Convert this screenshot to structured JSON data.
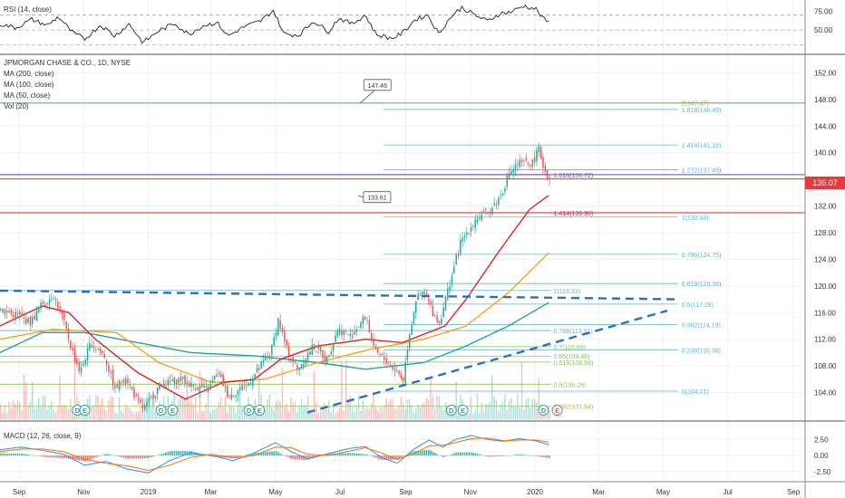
{
  "rsi_panel": {
    "label": "RSI (14, close)",
    "axis_ticks": [
      "75.00",
      "50.00"
    ],
    "tick_values": [
      75,
      50
    ],
    "range": [
      20,
      90
    ],
    "bands": [
      70,
      50,
      30
    ]
  },
  "price_panel": {
    "header": "JPMORGAN CHASE & CO., 1D, NYSE",
    "indicators": [
      "MA (200, close)",
      "MA (100, close)",
      "MA (50, close)",
      "Vol (20)"
    ],
    "last_price": "136.07",
    "price_tags": [
      {
        "label": "147.46",
        "price": 147.46,
        "day": 340
      },
      {
        "label": "133.61",
        "price": 133.61,
        "day": 338
      }
    ]
  },
  "macd_panel": {
    "label": "MACD (12, 26, close, 9)",
    "axis_ticks": [
      "2.50",
      "0.00",
      "-2.50"
    ],
    "tick_values": [
      2.5,
      0,
      -2.5
    ],
    "range": [
      -3.5,
      3.8
    ]
  },
  "x_axis": {
    "labels": [
      {
        "text": "Sep",
        "day": 18
      },
      {
        "text": "Nov",
        "day": 79
      },
      {
        "text": "2019",
        "day": 140
      },
      {
        "text": "Mar",
        "day": 199
      },
      {
        "text": "May",
        "day": 260
      },
      {
        "text": "Jul",
        "day": 321
      },
      {
        "text": "Sep",
        "day": 383
      },
      {
        "text": "Nov",
        "day": 444
      },
      {
        "text": "2020",
        "day": 505
      },
      {
        "text": "Mar",
        "day": 565
      },
      {
        "text": "May",
        "day": 626
      },
      {
        "text": "Jul",
        "day": 687
      },
      {
        "text": "Sep",
        "day": 749
      }
    ],
    "range": [
      0,
      760
    ]
  },
  "colors": {
    "up": "#26a69a",
    "down": "#ef5350",
    "ma200": "#1fa39b",
    "ma100": "#f7a21b",
    "ma50": "#d9232a",
    "fib_blue": "#5bb3d6",
    "fib_green": "#8bc34a",
    "trend": "#2d6fbf",
    "rsi": "#222222",
    "macd": "#2196f3",
    "signal": "#ff6d00"
  },
  "chart_data": {
    "type": "candlestick",
    "title": "JPMORGAN CHASE & CO., 1D, NYSE",
    "y_axis_ticks": [
      "152.00",
      "148.00",
      "144.00",
      "140.00",
      "136.00",
      "132.00",
      "128.00",
      "124.00",
      "120.00",
      "116.00",
      "112.00",
      "108.00",
      "104.00"
    ],
    "y_tick_values": [
      152,
      148,
      144,
      140,
      136,
      132,
      128,
      124,
      120,
      116,
      112,
      108,
      104
    ],
    "ylim": [
      100.0,
      154.5
    ],
    "price_path": [
      {
        "day": 0,
        "price": 116.5
      },
      {
        "day": 18,
        "price": 115.5
      },
      {
        "day": 28,
        "price": 114.5
      },
      {
        "day": 40,
        "price": 117.5
      },
      {
        "day": 50,
        "price": 118.5
      },
      {
        "day": 58,
        "price": 115.5
      },
      {
        "day": 66,
        "price": 111.0
      },
      {
        "day": 75,
        "price": 107.0
      },
      {
        "day": 85,
        "price": 111.5
      },
      {
        "day": 98,
        "price": 109.5
      },
      {
        "day": 108,
        "price": 104.5
      },
      {
        "day": 118,
        "price": 106.5
      },
      {
        "day": 128,
        "price": 103.0
      },
      {
        "day": 135,
        "price": 101.5
      },
      {
        "day": 150,
        "price": 105.0
      },
      {
        "day": 170,
        "price": 106.0
      },
      {
        "day": 182,
        "price": 105.0
      },
      {
        "day": 196,
        "price": 104.5
      },
      {
        "day": 205,
        "price": 107.0
      },
      {
        "day": 215,
        "price": 103.5
      },
      {
        "day": 232,
        "price": 105.0
      },
      {
        "day": 255,
        "price": 110.0
      },
      {
        "day": 262,
        "price": 115.0
      },
      {
        "day": 270,
        "price": 110.5
      },
      {
        "day": 280,
        "price": 107.5
      },
      {
        "day": 295,
        "price": 111.0
      },
      {
        "day": 308,
        "price": 109.0
      },
      {
        "day": 318,
        "price": 113.5
      },
      {
        "day": 330,
        "price": 112.5
      },
      {
        "day": 345,
        "price": 115.5
      },
      {
        "day": 352,
        "price": 110.5
      },
      {
        "day": 362,
        "price": 109.0
      },
      {
        "day": 372,
        "price": 107.5
      },
      {
        "day": 380,
        "price": 106.0
      },
      {
        "day": 385,
        "price": 112.0
      },
      {
        "day": 392,
        "price": 118.0
      },
      {
        "day": 400,
        "price": 119.0
      },
      {
        "day": 408,
        "price": 116.0
      },
      {
        "day": 414,
        "price": 114.5
      },
      {
        "day": 424,
        "price": 120.5
      },
      {
        "day": 434,
        "price": 126.5
      },
      {
        "day": 448,
        "price": 130.0
      },
      {
        "day": 460,
        "price": 131.0
      },
      {
        "day": 472,
        "price": 133.5
      },
      {
        "day": 480,
        "price": 137.0
      },
      {
        "day": 490,
        "price": 138.5
      },
      {
        "day": 502,
        "price": 138.5
      },
      {
        "day": 508,
        "price": 140.5
      },
      {
        "day": 513,
        "price": 137.5
      },
      {
        "day": 518,
        "price": 136.1
      }
    ],
    "moving_averages": [
      {
        "name": "MA (200, close)",
        "points": [
          {
            "day": 0,
            "price": 110.0
          },
          {
            "day": 40,
            "price": 113.0
          },
          {
            "day": 80,
            "price": 113.0
          },
          {
            "day": 130,
            "price": 111.5
          },
          {
            "day": 180,
            "price": 110.0
          },
          {
            "day": 240,
            "price": 109.5
          },
          {
            "day": 300,
            "price": 108.5
          },
          {
            "day": 345,
            "price": 107.5
          },
          {
            "day": 400,
            "price": 108.5
          },
          {
            "day": 440,
            "price": 111.0
          },
          {
            "day": 480,
            "price": 114.0
          },
          {
            "day": 518,
            "price": 117.5
          }
        ]
      },
      {
        "name": "MA (100, close)",
        "points": [
          {
            "day": 0,
            "price": 112.0
          },
          {
            "day": 50,
            "price": 113.5
          },
          {
            "day": 110,
            "price": 113.0
          },
          {
            "day": 150,
            "price": 108.5
          },
          {
            "day": 200,
            "price": 105.5
          },
          {
            "day": 250,
            "price": 106.0
          },
          {
            "day": 300,
            "price": 108.5
          },
          {
            "day": 350,
            "price": 110.5
          },
          {
            "day": 400,
            "price": 112.0
          },
          {
            "day": 440,
            "price": 114.0
          },
          {
            "day": 480,
            "price": 119.0
          },
          {
            "day": 518,
            "price": 125.0
          }
        ]
      },
      {
        "name": "MA (50, close)",
        "points": [
          {
            "day": 0,
            "price": 114.0
          },
          {
            "day": 40,
            "price": 117.0
          },
          {
            "day": 65,
            "price": 116.0
          },
          {
            "day": 90,
            "price": 112.0
          },
          {
            "day": 130,
            "price": 107.0
          },
          {
            "day": 175,
            "price": 103.0
          },
          {
            "day": 210,
            "price": 105.5
          },
          {
            "day": 240,
            "price": 106.0
          },
          {
            "day": 265,
            "price": 109.0
          },
          {
            "day": 300,
            "price": 111.0
          },
          {
            "day": 345,
            "price": 112.0
          },
          {
            "day": 380,
            "price": 111.5
          },
          {
            "day": 420,
            "price": 114.0
          },
          {
            "day": 440,
            "price": 118.0
          },
          {
            "day": 470,
            "price": 125.0
          },
          {
            "day": 500,
            "price": 131.5
          },
          {
            "day": 518,
            "price": 133.6
          }
        ]
      }
    ],
    "fib_levels_upper": [
      {
        "label": "2(147.47)",
        "value": 147.47,
        "color": "fib_green"
      },
      {
        "label": "1.618(146.49)",
        "value": 146.49,
        "color": "fib_blue"
      },
      {
        "label": "1.414(141.16)",
        "value": 141.16,
        "color": "fib_blue"
      },
      {
        "label": "1.272(137.45)",
        "value": 137.45,
        "color": "fib_blue"
      },
      {
        "label": "1(130.34)",
        "value": 130.34,
        "color": "fib_blue"
      },
      {
        "label": "0.786(124.75)",
        "value": 124.75,
        "color": "fib_blue"
      },
      {
        "label": "0.618(120.36)",
        "value": 120.36,
        "color": "fib_blue"
      },
      {
        "label": "0.5(117.28)",
        "value": 117.28,
        "color": "fib_blue"
      },
      {
        "label": "0.382(114.19)",
        "value": 114.19,
        "color": "fib_blue"
      },
      {
        "label": "0.236(110.38)",
        "value": 110.38,
        "color": "fib_blue"
      },
      {
        "label": "0(104.21)",
        "value": 104.21,
        "color": "fib_blue"
      }
    ],
    "fib_levels_lower": [
      {
        "label": "1.618(136.72)",
        "value": 136.72,
        "color": "#7b4ab0"
      },
      {
        "label": "1.414(130.98)",
        "value": 130.98,
        "color": "#d9232a"
      },
      {
        "label": "1(119.33)",
        "value": 119.33,
        "color": "fib_blue"
      },
      {
        "label": "0.786(113.31)",
        "value": 113.31,
        "color": "fib_blue"
      },
      {
        "label": "0.7(110.89)",
        "value": 110.89,
        "color": "fib_green"
      },
      {
        "label": "0.65(109.48)",
        "value": 109.48,
        "color": "fib_green"
      },
      {
        "label": "0.618(108.58)",
        "value": 108.58,
        "color": "fib_green"
      },
      {
        "label": "0.5(105.26)",
        "value": 105.26,
        "color": "fib_green"
      },
      {
        "label": "0.382(101.94)",
        "value": 101.94,
        "color": "fib_green"
      }
    ],
    "horizontal_lines": [
      {
        "value": 147.47,
        "color": "#3fae73"
      },
      {
        "value": 136.72,
        "color": "#5a4fa3"
      },
      {
        "value": 136.07,
        "color": "#e5393b"
      },
      {
        "value": 130.98,
        "color": "#d9232a"
      }
    ],
    "trend_lines": [
      {
        "from": {
          "day": 0,
          "price": 119.3
        },
        "to": {
          "day": 640,
          "price": 118.0
        }
      },
      {
        "from": {
          "day": 290,
          "price": 101.0
        },
        "to": {
          "day": 630,
          "price": 116.3
        }
      }
    ],
    "event_markers": [
      {
        "text": "D",
        "day": 73,
        "color": "up"
      },
      {
        "text": "E",
        "day": 80,
        "color": "up"
      },
      {
        "text": "D",
        "day": 152,
        "color": "up"
      },
      {
        "text": "E",
        "day": 163,
        "color": "up"
      },
      {
        "text": "D",
        "day": 235,
        "color": "up"
      },
      {
        "text": "E",
        "day": 245,
        "color": "up"
      },
      {
        "text": "D",
        "day": 426,
        "color": "up"
      },
      {
        "text": "E",
        "day": 437,
        "color": "up"
      },
      {
        "text": "D",
        "day": 513,
        "color": "up"
      },
      {
        "text": "E",
        "day": 526,
        "color": "down"
      }
    ],
    "rsi_path": [
      {
        "day": 0,
        "v": 58
      },
      {
        "day": 15,
        "v": 53
      },
      {
        "day": 30,
        "v": 64
      },
      {
        "day": 45,
        "v": 56
      },
      {
        "day": 55,
        "v": 68
      },
      {
        "day": 68,
        "v": 47
      },
      {
        "day": 80,
        "v": 38
      },
      {
        "day": 95,
        "v": 57
      },
      {
        "day": 108,
        "v": 42
      },
      {
        "day": 122,
        "v": 58
      },
      {
        "day": 135,
        "v": 33
      },
      {
        "day": 150,
        "v": 49
      },
      {
        "day": 165,
        "v": 59
      },
      {
        "day": 178,
        "v": 44
      },
      {
        "day": 192,
        "v": 56
      },
      {
        "day": 205,
        "v": 60
      },
      {
        "day": 215,
        "v": 42
      },
      {
        "day": 230,
        "v": 54
      },
      {
        "day": 246,
        "v": 62
      },
      {
        "day": 258,
        "v": 76
      },
      {
        "day": 268,
        "v": 45
      },
      {
        "day": 282,
        "v": 43
      },
      {
        "day": 296,
        "v": 62
      },
      {
        "day": 310,
        "v": 48
      },
      {
        "day": 320,
        "v": 66
      },
      {
        "day": 332,
        "v": 58
      },
      {
        "day": 345,
        "v": 70
      },
      {
        "day": 355,
        "v": 44
      },
      {
        "day": 370,
        "v": 39
      },
      {
        "day": 380,
        "v": 46
      },
      {
        "day": 392,
        "v": 64
      },
      {
        "day": 404,
        "v": 70
      },
      {
        "day": 414,
        "v": 45
      },
      {
        "day": 426,
        "v": 68
      },
      {
        "day": 436,
        "v": 80
      },
      {
        "day": 448,
        "v": 70
      },
      {
        "day": 460,
        "v": 62
      },
      {
        "day": 472,
        "v": 72
      },
      {
        "day": 482,
        "v": 74
      },
      {
        "day": 494,
        "v": 82
      },
      {
        "day": 506,
        "v": 78
      },
      {
        "day": 512,
        "v": 66
      },
      {
        "day": 518,
        "v": 60
      }
    ],
    "macd_path": [
      {
        "day": 0,
        "m": 0.9,
        "s": 0.6
      },
      {
        "day": 20,
        "m": 1.3,
        "s": 1.0
      },
      {
        "day": 40,
        "m": 0.8,
        "s": 1.0
      },
      {
        "day": 60,
        "m": 0.2,
        "s": 0.6
      },
      {
        "day": 80,
        "m": -1.5,
        "s": -0.6
      },
      {
        "day": 100,
        "m": -0.9,
        "s": -1.2
      },
      {
        "day": 120,
        "m": -2.1,
        "s": -1.6
      },
      {
        "day": 140,
        "m": -2.7,
        "s": -2.3
      },
      {
        "day": 160,
        "m": -0.8,
        "s": -1.5
      },
      {
        "day": 180,
        "m": 0.4,
        "s": -0.3
      },
      {
        "day": 200,
        "m": 0.0,
        "s": 0.2
      },
      {
        "day": 220,
        "m": -0.8,
        "s": -0.4
      },
      {
        "day": 240,
        "m": 0.4,
        "s": 0.0
      },
      {
        "day": 260,
        "m": 2.0,
        "s": 1.3
      },
      {
        "day": 275,
        "m": 0.6,
        "s": 1.2
      },
      {
        "day": 290,
        "m": -0.5,
        "s": 0.2
      },
      {
        "day": 310,
        "m": 0.3,
        "s": 0.0
      },
      {
        "day": 330,
        "m": 1.1,
        "s": 0.7
      },
      {
        "day": 345,
        "m": 1.4,
        "s": 1.2
      },
      {
        "day": 360,
        "m": -0.3,
        "s": 0.4
      },
      {
        "day": 375,
        "m": -1.2,
        "s": -0.6
      },
      {
        "day": 390,
        "m": 0.9,
        "s": 0.2
      },
      {
        "day": 405,
        "m": 2.4,
        "s": 1.5
      },
      {
        "day": 418,
        "m": 1.3,
        "s": 1.6
      },
      {
        "day": 430,
        "m": 2.5,
        "s": 2.0
      },
      {
        "day": 445,
        "m": 3.1,
        "s": 2.6
      },
      {
        "day": 460,
        "m": 2.5,
        "s": 2.7
      },
      {
        "day": 475,
        "m": 2.2,
        "s": 2.3
      },
      {
        "day": 490,
        "m": 2.6,
        "s": 2.4
      },
      {
        "day": 505,
        "m": 2.3,
        "s": 2.4
      },
      {
        "day": 518,
        "m": 1.7,
        "s": 2.1
      }
    ]
  }
}
